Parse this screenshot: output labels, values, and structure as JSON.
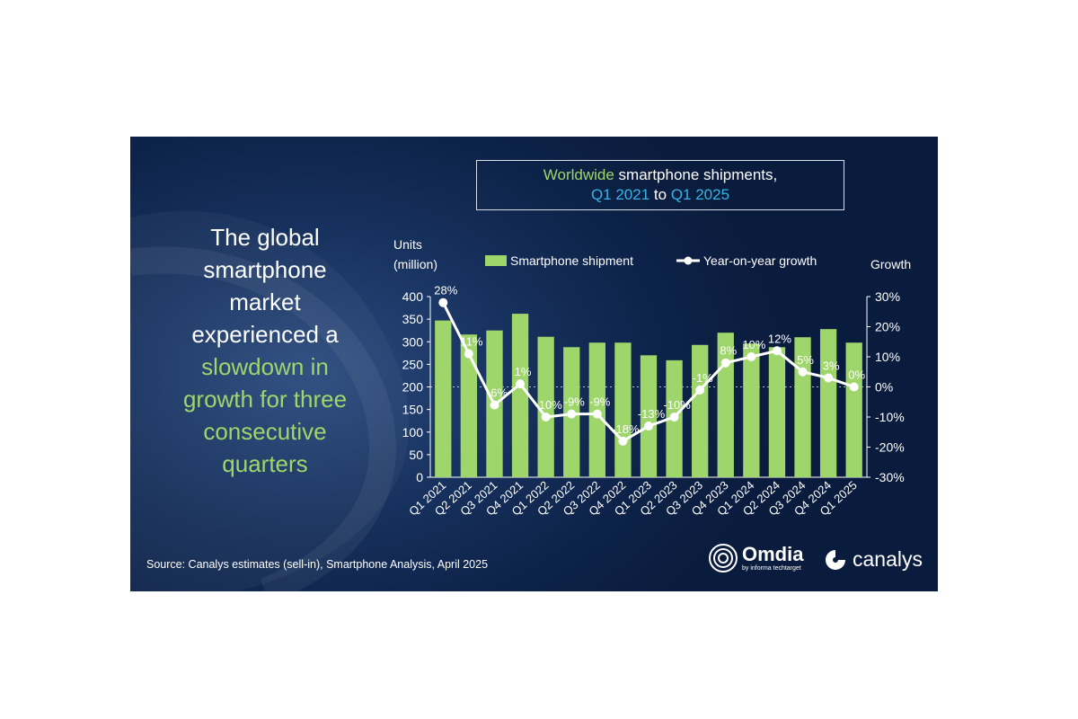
{
  "title": {
    "line1_green": "Worldwide",
    "line1_rest": " smartphone shipments,",
    "line2_a": "Q1 2021",
    "line2_mid": " to ",
    "line2_b": "Q1 2025"
  },
  "headline": {
    "white1": "The global",
    "white2": "smartphone",
    "white3": "market",
    "white4": "experienced a",
    "green1": "slowdown in",
    "green2": "growth for three",
    "green3": "consecutive",
    "green4": "quarters"
  },
  "source": "Source: Canalys estimates (sell-in), Smartphone Analysis, April 2025",
  "logos": {
    "omdia": "Omdia",
    "omdia_sub": "by informa techtarget",
    "canalys": "canalys"
  },
  "colors": {
    "bar": "#9fd66b",
    "line": "#ffffff",
    "accent_blue": "#34b4e6",
    "background": "#0f2550"
  },
  "chart_data": {
    "type": "bar",
    "categories": [
      "Q1 2021",
      "Q2 2021",
      "Q3 2021",
      "Q4 2021",
      "Q1 2022",
      "Q2 2022",
      "Q3 2022",
      "Q4 2022",
      "Q1 2023",
      "Q2 2023",
      "Q3 2023",
      "Q4 2023",
      "Q1 2024",
      "Q2 2024",
      "Q3 2024",
      "Q4 2024",
      "Q1 2025"
    ],
    "series": [
      {
        "name": "Smartphone shipment",
        "type": "bar",
        "axis": "left",
        "values": [
          347,
          316,
          325,
          362,
          311,
          288,
          298,
          298,
          270,
          259,
          293,
          320,
          296,
          288,
          310,
          328,
          298
        ]
      },
      {
        "name": "Year-on-year growth",
        "type": "line",
        "axis": "right",
        "values": [
          28,
          11,
          -6,
          1,
          -10,
          -9,
          -9,
          -18,
          -13,
          -10,
          -1,
          8,
          10,
          12,
          5,
          3,
          0
        ],
        "labels": [
          "28%",
          "11%",
          "-6%",
          "1%",
          "-10%",
          "-9%",
          "-9%",
          "-18%",
          "-13%",
          "-10%",
          "-1%",
          "8%",
          "10%",
          "12%",
          "5%",
          "3%",
          "0%"
        ]
      }
    ],
    "ylabel_left_1": "Units",
    "ylabel_left_2": "(million)",
    "ylabel_right": "Growth",
    "ylim_left": [
      0,
      400
    ],
    "ylim_right": [
      -30,
      30
    ],
    "yticks_left": [
      "0",
      "50",
      "100",
      "150",
      "200",
      "250",
      "300",
      "350",
      "400"
    ],
    "yticks_right": [
      "-30%",
      "-20%",
      "-10%",
      "0%",
      "10%",
      "20%",
      "30%"
    ],
    "legend_position": "top"
  }
}
